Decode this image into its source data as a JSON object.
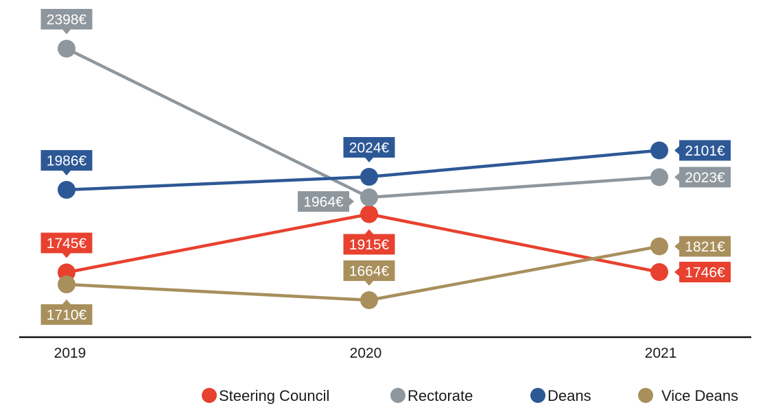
{
  "chart_data": {
    "type": "line",
    "categories": [
      "2019",
      "2020",
      "2021"
    ],
    "ylim": [
      1550,
      2450
    ],
    "grid": false,
    "legend_position": "bottom-right",
    "series": [
      {
        "name": "Steering Council",
        "color": "#e8412f",
        "values": [
          1745,
          1915,
          1746
        ],
        "labels": [
          "1745€",
          "1915€",
          "1746€"
        ],
        "label_positions": [
          "above",
          "below",
          "right"
        ]
      },
      {
        "name": "Rectorate",
        "color": "#8e979e",
        "values": [
          2398,
          1964,
          2023
        ],
        "labels": [
          "2398€",
          "1964€",
          "2023€"
        ],
        "label_positions": [
          "above",
          "left",
          "right"
        ]
      },
      {
        "name": "Deans",
        "color": "#2d5896",
        "values": [
          1986,
          2024,
          2101
        ],
        "labels": [
          "1986€",
          "2024€",
          "2101€"
        ],
        "label_positions": [
          "above",
          "above",
          "right"
        ]
      },
      {
        "name": "Vice Deans",
        "color": "#a88f5c",
        "values": [
          1710,
          1664,
          1821
        ],
        "labels": [
          "1710€",
          "1664€",
          "1821€"
        ],
        "label_positions": [
          "below",
          "above",
          "right"
        ]
      }
    ]
  }
}
